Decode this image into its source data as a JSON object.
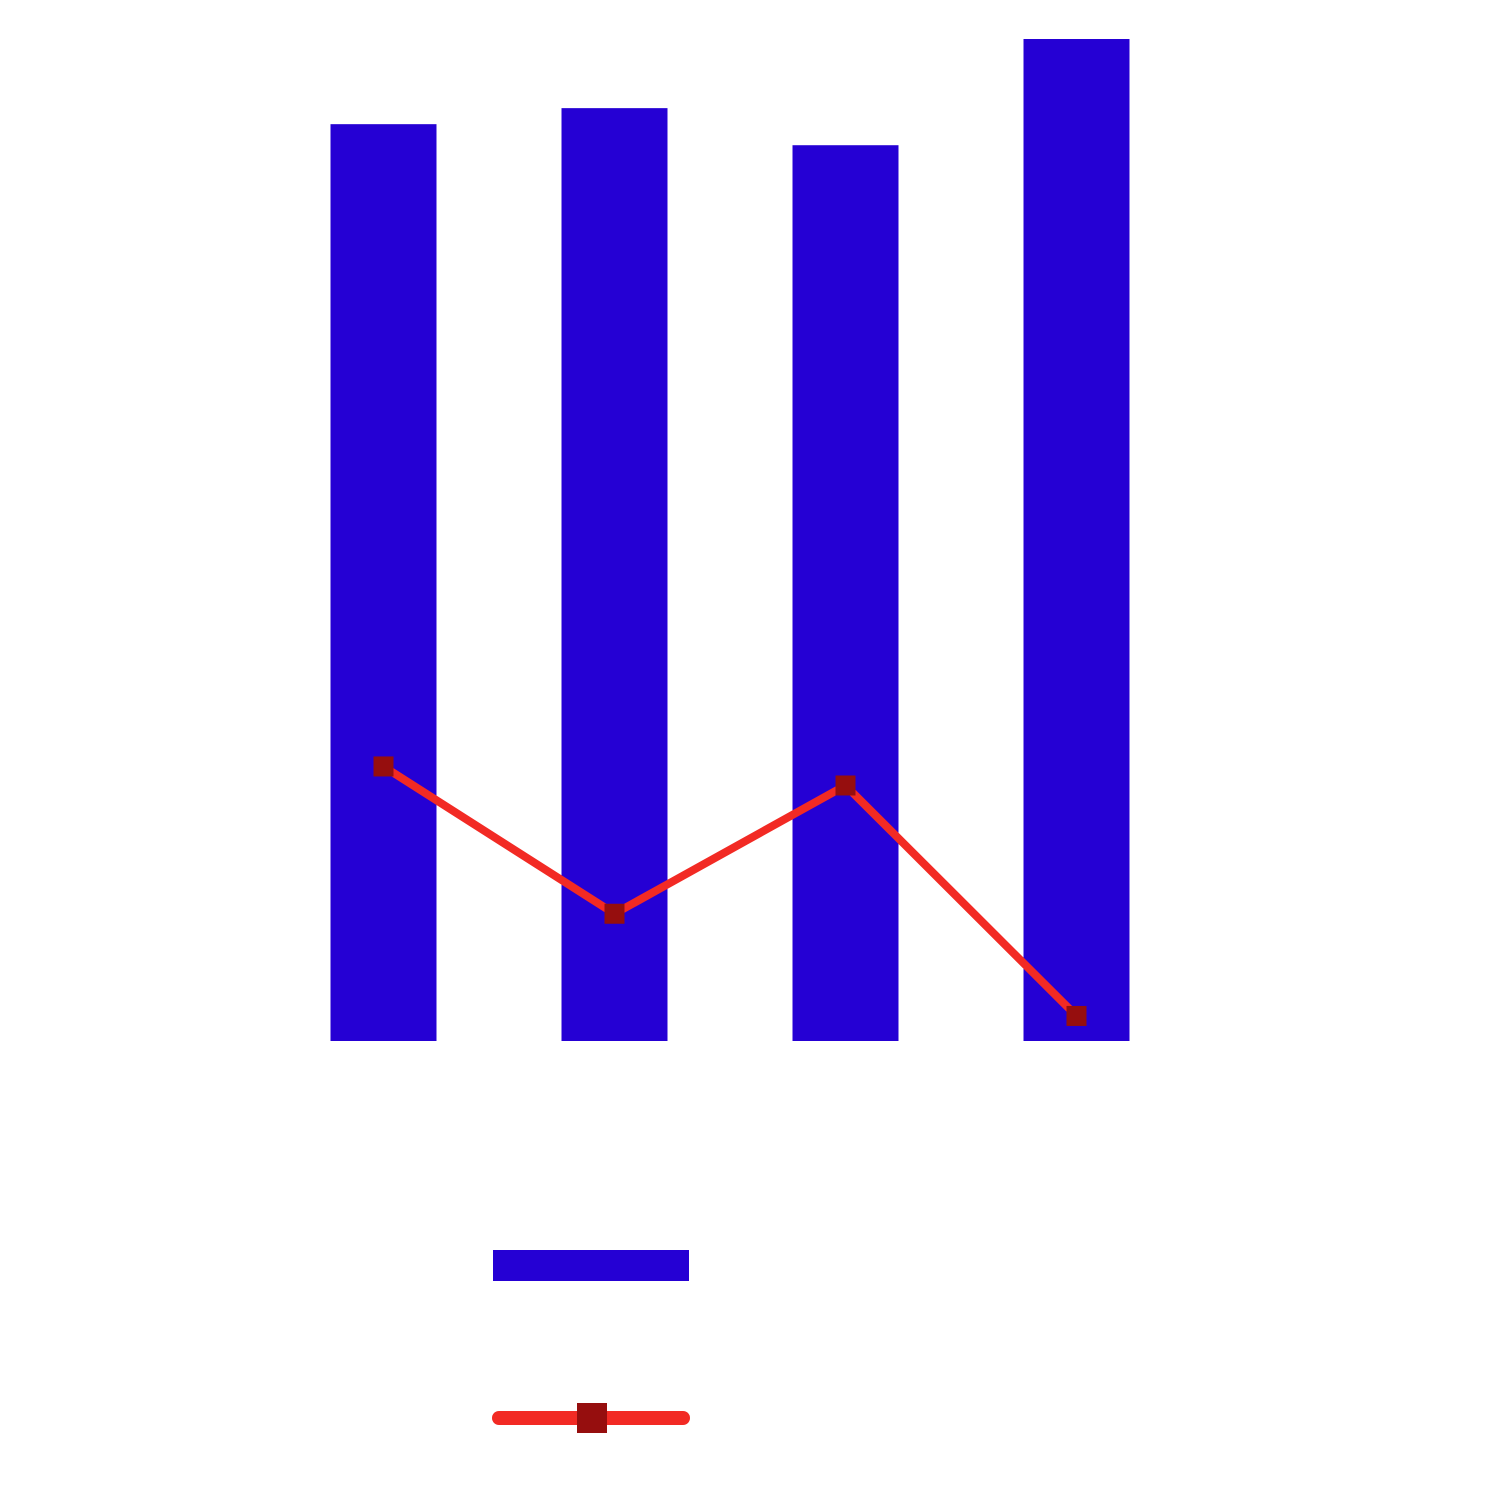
{
  "chart_data": {
    "type": "combo",
    "categories": [
      null,
      null,
      null,
      null
    ],
    "ylim": [
      0,
      100
    ],
    "legend": "bottom",
    "series": [
      {
        "type": "bar",
        "color": "#2500d4",
        "values": [
          91.5,
          93.1,
          89.4,
          100
        ]
      },
      {
        "type": "line",
        "color": "#f22a24",
        "marker_color": "#960e0e",
        "values": [
          27.4,
          12.7,
          25.5,
          2.5
        ]
      }
    ]
  }
}
